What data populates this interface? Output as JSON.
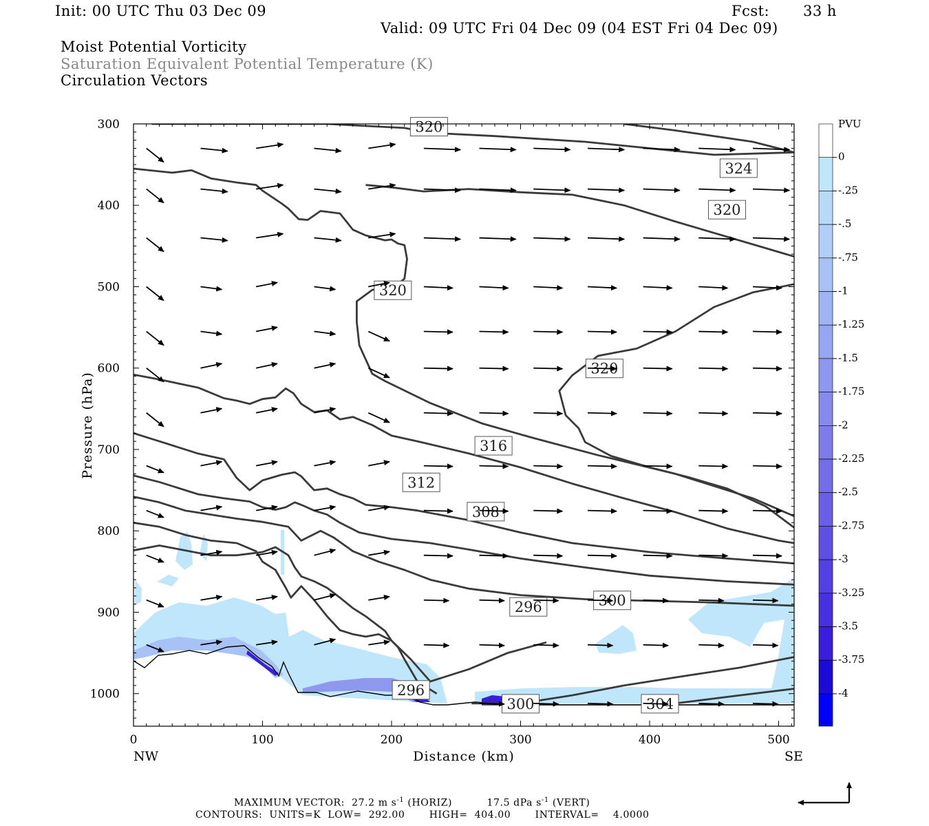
{
  "header": {
    "init": "Init: 00 UTC Thu 03 Dec 09",
    "fcst_label": "Fcst:",
    "fcst_value": "33 h",
    "valid": "Valid: 09 UTC Fri 04 Dec 09 (04 EST Fri 04 Dec 09)",
    "title_1": "Moist Potential Vorticity",
    "title_2": "Saturation Equivalent Potential Temperature (K)",
    "title_3": "Circulation Vectors"
  },
  "chart_data": {
    "type": "cross-section",
    "ylabel": "Pressure (hPa)",
    "xlabel": "Distance (km)",
    "x_ticks": [
      0,
      100,
      200,
      300,
      400,
      500
    ],
    "y_ticks": [
      300,
      400,
      500,
      600,
      700,
      800,
      900,
      1000
    ],
    "xlim": [
      0,
      512
    ],
    "ylim": [
      1040,
      300
    ],
    "y_scale": "linear",
    "x_end_labels": {
      "left": "NW",
      "right": "SE"
    },
    "colorbar": {
      "unit": "PVU",
      "ticks": [
        "0",
        "-.25",
        "-.5",
        "-.75",
        "-1",
        "-1.25",
        "-1.5",
        "-1.75",
        "-2",
        "-2.25",
        "-2.5",
        "-2.75",
        "-3",
        "-3.25",
        "-3.5",
        "-3.75",
        "-4"
      ],
      "colors": [
        "#ffffff",
        "#ffffff",
        "#bfe6fb",
        "#b8daf9",
        "#b0cef7",
        "#a8c2f5",
        "#9fb4f3",
        "#97a6f1",
        "#8e98ef",
        "#868aed",
        "#7d7cea",
        "#736de8",
        "#6a5ee6",
        "#5f4fe4",
        "#543fe2",
        "#482fdf",
        "#3b1edd",
        "#1c0ad8",
        "#0000ff"
      ]
    },
    "contours": [
      {
        "label": "320",
        "pts": [
          [
            14,
            300
          ],
          [
            80,
            300
          ],
          [
            150,
            300
          ],
          [
            210,
            305
          ],
          [
            230,
            311
          ],
          [
            280,
            315
          ],
          [
            350,
            322
          ],
          [
            450,
            338
          ],
          [
            512,
            335
          ]
        ]
      },
      {
        "label": "324",
        "pts": [
          [
            380,
            300
          ],
          [
            420,
            308
          ],
          [
            480,
            322
          ],
          [
            512,
            335
          ]
        ]
      },
      {
        "label": "320",
        "pts": [
          [
            0,
            355
          ],
          [
            30,
            360
          ],
          [
            45,
            357
          ],
          [
            60,
            367
          ],
          [
            80,
            372
          ],
          [
            95,
            375
          ],
          [
            100,
            382
          ],
          [
            115,
            398
          ],
          [
            120,
            404
          ],
          [
            128,
            417
          ],
          [
            135,
            418
          ],
          [
            145,
            407
          ],
          [
            160,
            410
          ],
          [
            170,
            430
          ],
          [
            180,
            437
          ],
          [
            195,
            443
          ],
          [
            200,
            442
          ],
          [
            205,
            447
          ],
          [
            210,
            449
          ],
          [
            212,
            466
          ],
          [
            210,
            490
          ],
          [
            205,
            497
          ],
          [
            185,
            504
          ],
          [
            173,
            518
          ],
          [
            173,
            543
          ],
          [
            175,
            572
          ],
          [
            185,
            607
          ],
          [
            195,
            616
          ],
          [
            230,
            643
          ],
          [
            270,
            668
          ],
          [
            310,
            686
          ],
          [
            360,
            707
          ],
          [
            420,
            730
          ],
          [
            480,
            760
          ],
          [
            512,
            782
          ]
        ]
      },
      {
        "label": "320",
        "pts": [
          [
            512,
            463
          ],
          [
            480,
            448
          ],
          [
            420,
            420
          ],
          [
            380,
            400
          ],
          [
            340,
            387
          ],
          [
            300,
            384
          ],
          [
            260,
            380
          ],
          [
            225,
            383
          ],
          [
            200,
            378
          ],
          [
            180,
            375
          ]
        ]
      },
      {
        "label": "320",
        "pts": [
          [
            512,
            497
          ],
          [
            480,
            507
          ],
          [
            450,
            525
          ],
          [
            420,
            555
          ],
          [
            390,
            576
          ],
          [
            360,
            585
          ],
          [
            340,
            609
          ],
          [
            330,
            628
          ],
          [
            335,
            658
          ],
          [
            345,
            674
          ],
          [
            350,
            691
          ],
          [
            370,
            708
          ],
          [
            400,
            722
          ],
          [
            430,
            734
          ],
          [
            460,
            748
          ],
          [
            490,
            770
          ],
          [
            512,
            796
          ]
        ]
      },
      {
        "label": "316",
        "pts": [
          [
            0,
            608
          ],
          [
            20,
            614
          ],
          [
            50,
            624
          ],
          [
            70,
            637
          ],
          [
            80,
            640
          ],
          [
            90,
            644
          ],
          [
            100,
            638
          ],
          [
            110,
            636
          ],
          [
            118,
            625
          ],
          [
            124,
            631
          ],
          [
            130,
            644
          ],
          [
            140,
            654
          ],
          [
            150,
            652
          ],
          [
            160,
            663
          ],
          [
            170,
            660
          ],
          [
            185,
            670
          ],
          [
            200,
            683
          ],
          [
            220,
            690
          ],
          [
            260,
            705
          ],
          [
            300,
            722
          ],
          [
            340,
            742
          ],
          [
            380,
            760
          ],
          [
            420,
            777
          ],
          [
            460,
            797
          ],
          [
            500,
            812
          ],
          [
            512,
            815
          ]
        ]
      },
      {
        "label": "312",
        "pts": [
          [
            0,
            680
          ],
          [
            20,
            690
          ],
          [
            50,
            705
          ],
          [
            70,
            712
          ],
          [
            80,
            735
          ],
          [
            90,
            750
          ],
          [
            100,
            738
          ],
          [
            115,
            731
          ],
          [
            125,
            728
          ],
          [
            130,
            733
          ],
          [
            140,
            750
          ],
          [
            150,
            748
          ],
          [
            160,
            755
          ],
          [
            170,
            760
          ],
          [
            180,
            768
          ],
          [
            200,
            771
          ],
          [
            220,
            775
          ],
          [
            260,
            787
          ],
          [
            300,
            802
          ],
          [
            340,
            815
          ],
          [
            400,
            826
          ],
          [
            460,
            834
          ],
          [
            512,
            840
          ]
        ]
      },
      {
        "label": "308",
        "pts": [
          [
            0,
            732
          ],
          [
            20,
            740
          ],
          [
            50,
            755
          ],
          [
            70,
            760
          ],
          [
            90,
            764
          ],
          [
            100,
            771
          ],
          [
            110,
            774
          ],
          [
            118,
            771
          ],
          [
            125,
            765
          ],
          [
            130,
            768
          ],
          [
            140,
            775
          ],
          [
            150,
            780
          ],
          [
            160,
            790
          ],
          [
            175,
            802
          ],
          [
            200,
            810
          ],
          [
            230,
            815
          ],
          [
            260,
            823
          ],
          [
            300,
            834
          ],
          [
            350,
            845
          ],
          [
            400,
            855
          ],
          [
            460,
            862
          ],
          [
            512,
            866
          ]
        ]
      },
      {
        "label": "300",
        "pts": [
          [
            0,
            758
          ],
          [
            20,
            765
          ],
          [
            40,
            775
          ],
          [
            60,
            780
          ],
          [
            80,
            785
          ],
          [
            100,
            789
          ],
          [
            120,
            795
          ],
          [
            130,
            812
          ],
          [
            145,
            800
          ],
          [
            155,
            808
          ],
          [
            170,
            825
          ],
          [
            190,
            838
          ],
          [
            210,
            848
          ],
          [
            230,
            860
          ],
          [
            260,
            871
          ],
          [
            300,
            879
          ],
          [
            350,
            884
          ],
          [
            400,
            886
          ],
          [
            450,
            888
          ],
          [
            512,
            892
          ]
        ]
      },
      {
        "label": "296",
        "pts": [
          [
            0,
            790
          ],
          [
            20,
            795
          ],
          [
            40,
            805
          ],
          [
            60,
            812
          ],
          [
            80,
            815
          ],
          [
            95,
            825
          ],
          [
            100,
            838
          ],
          [
            110,
            848
          ],
          [
            118,
            870
          ],
          [
            122,
            882
          ],
          [
            130,
            868
          ],
          [
            140,
            885
          ],
          [
            150,
            905
          ],
          [
            160,
            922
          ],
          [
            170,
            927
          ],
          [
            180,
            930
          ],
          [
            190,
            927
          ],
          [
            200,
            935
          ],
          [
            215,
            958
          ],
          [
            230,
            985
          ],
          [
            260,
            970
          ],
          [
            290,
            950
          ],
          [
            320,
            937
          ]
        ]
      },
      {
        "label": "296",
        "pts": [
          [
            0,
            824
          ],
          [
            20,
            818
          ],
          [
            40,
            824
          ],
          [
            60,
            830
          ],
          [
            80,
            830
          ],
          [
            100,
            826
          ],
          [
            110,
            820
          ],
          [
            120,
            830
          ],
          [
            125,
            845
          ],
          [
            130,
            856
          ],
          [
            140,
            862
          ],
          [
            150,
            870
          ],
          [
            160,
            882
          ],
          [
            170,
            895
          ],
          [
            180,
            905
          ],
          [
            195,
            923
          ],
          [
            200,
            935
          ],
          [
            205,
            943
          ],
          [
            210,
            958
          ],
          [
            220,
            985
          ],
          [
            235,
            1000
          ]
        ]
      },
      {
        "label": "300",
        "pts": [
          [
            262,
            1012
          ],
          [
            300,
            1012
          ],
          [
            340,
            1002
          ],
          [
            380,
            990
          ],
          [
            420,
            980
          ],
          [
            470,
            968
          ],
          [
            512,
            955
          ]
        ]
      },
      {
        "label": "304",
        "pts": [
          [
            420,
            1012
          ],
          [
            470,
            1002
          ],
          [
            512,
            994
          ]
        ]
      }
    ],
    "vectors_note": "circulation vectors",
    "info": {
      "max_vector_horiz": "27.2 m s-1 (HORIZ)",
      "max_vector_vert": "17.5 dPa s-1 (VERT)",
      "units": "K",
      "low": "292.00",
      "high": "404.00",
      "interval": "4.0000"
    }
  },
  "footer": {
    "line1": "MAXIMUM VECTOR:  27.2 m s",
    "line1_sup": "-1",
    "line1_b": " (HORIZ)          17.5 dPa s",
    "line1_sup2": "-1",
    "line1_c": " (VERT)",
    "line2": "CONTOURS:  UNITS=K  LOW=  292.00       HIGH=  404.00       INTERVAL=    4.0000"
  }
}
